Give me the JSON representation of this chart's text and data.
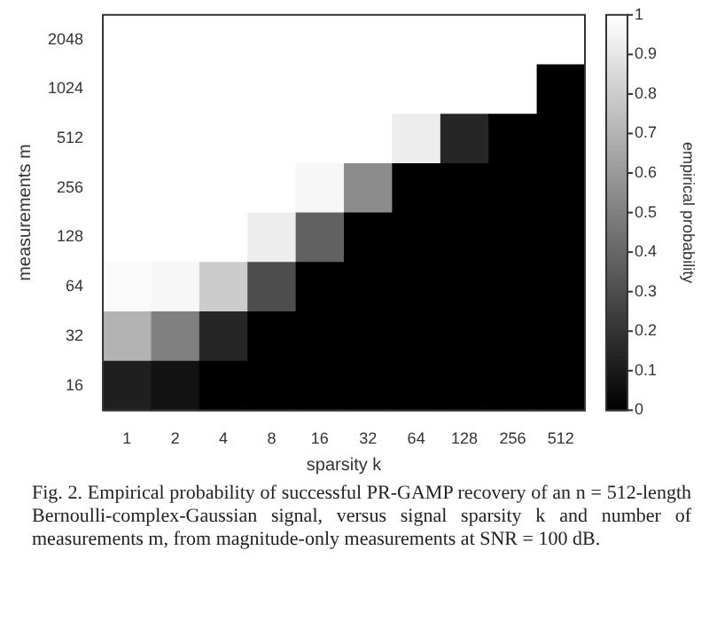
{
  "chart_data": {
    "type": "heatmap",
    "xlabel": "sparsity k",
    "ylabel": "measurements m",
    "clabel": "empirical probability",
    "categories": [
      "1",
      "2",
      "4",
      "8",
      "16",
      "32",
      "64",
      "128",
      "256",
      "512"
    ],
    "y_categories": [
      "2048",
      "1024",
      "512",
      "256",
      "128",
      "64",
      "32",
      "16"
    ],
    "cells": [
      [
        1,
        1,
        1,
        1,
        1,
        1,
        1,
        1,
        1,
        1
      ],
      [
        1,
        1,
        1,
        1,
        1,
        1,
        1,
        1,
        1,
        0
      ],
      [
        1,
        1,
        1,
        1,
        1,
        1,
        0.93,
        0.15,
        0,
        0
      ],
      [
        1,
        1,
        1,
        1,
        0.97,
        0.55,
        0,
        0,
        0,
        0
      ],
      [
        1,
        1,
        1,
        0.93,
        0.38,
        0,
        0,
        0,
        0,
        0
      ],
      [
        0.98,
        0.97,
        0.8,
        0.3,
        0,
        0,
        0,
        0,
        0,
        0
      ],
      [
        0.7,
        0.5,
        0.15,
        0,
        0,
        0,
        0,
        0,
        0,
        0
      ],
      [
        0.12,
        0.07,
        0,
        0,
        0,
        0,
        0,
        0,
        0,
        0
      ]
    ],
    "clim": [
      0,
      1
    ],
    "cticks": [
      0,
      0.1,
      0.2,
      0.3,
      0.4,
      0.5,
      0.6,
      0.7,
      0.8,
      0.9,
      1
    ],
    "annotations": [
      "Fig. 2.   Empirical probability of successful PR-GAMP recovery of an n = 512-length Bernoulli-complex-Gaussian signal, versus signal sparsity k and number of measurements m, from magnitude-only measurements at SNR = 100 dB."
    ]
  }
}
